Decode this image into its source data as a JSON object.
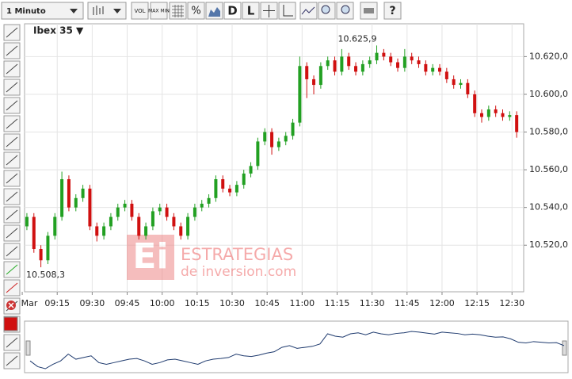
{
  "toolbar": {
    "period": "1 Minuto",
    "buttons": [
      "VOL",
      "MAX MIN",
      "%",
      "D",
      "L",
      "?"
    ]
  },
  "watermark": {
    "logo": "Ei",
    "line1": "ESTRATEGIAS",
    "line2": "de inversion.com"
  },
  "chart_data": {
    "type": "candlestick",
    "title": "Ibex 35 ▼",
    "x": [
      542,
      545,
      548,
      551,
      554,
      557,
      560,
      563,
      566,
      569,
      572,
      575,
      578,
      581,
      584,
      587,
      590,
      593,
      596,
      599,
      602,
      605,
      608,
      611,
      614,
      617,
      620,
      623,
      626,
      629,
      632,
      635,
      638,
      641,
      644,
      647,
      650,
      653,
      656,
      659,
      662,
      665,
      668,
      671,
      674,
      677,
      680,
      683,
      686,
      689,
      692,
      695,
      698,
      701,
      704,
      707,
      710,
      713,
      716,
      719,
      722,
      725,
      728,
      731,
      734,
      737,
      740,
      743,
      746,
      749,
      752
    ],
    "open": [
      10530,
      10535,
      10518,
      10512,
      10525,
      10535,
      10555,
      10540,
      10545,
      10550,
      10530,
      10525,
      10530,
      10535,
      10540,
      10542,
      10535,
      10525,
      10530,
      10538,
      10540,
      10535,
      10530,
      10525,
      10535,
      10540,
      10542,
      10545,
      10555,
      10550,
      10548,
      10552,
      10558,
      10562,
      10575,
      10580,
      10572,
      10575,
      10578,
      10585,
      10615,
      10608,
      10605,
      10615,
      10618,
      10612,
      10620,
      10615,
      10612,
      10616,
      10618,
      10622,
      10620,
      10617,
      10614,
      10620,
      10618,
      10616,
      10612,
      10614,
      10612,
      10608,
      10605,
      10606,
      10600,
      10590,
      10588,
      10592,
      10590,
      10588,
      10589
    ],
    "high": [
      10537,
      10537,
      10520,
      10527,
      10537,
      10559,
      10557,
      10547,
      10552,
      10552,
      10532,
      10532,
      10537,
      10542,
      10544,
      10544,
      10537,
      10532,
      10540,
      10542,
      10542,
      10537,
      10532,
      10537,
      10542,
      10544,
      10547,
      10557,
      10557,
      10552,
      10554,
      10560,
      10564,
      10577,
      10582,
      10582,
      10577,
      10580,
      10587,
      10620,
      10617,
      10610,
      10617,
      10620,
      10620,
      10624,
      10622,
      10617,
      10618,
      10620,
      10625.9,
      10624,
      10622,
      10619,
      10624,
      10622,
      10620,
      10618,
      10616,
      10616,
      10614,
      10610,
      10608,
      10608,
      10602,
      10592,
      10594,
      10594,
      10592,
      10591,
      10591
    ],
    "low": [
      10528,
      10516,
      10508.3,
      10510,
      10523,
      10533,
      10538,
      10538,
      10543,
      10528,
      10522,
      10523,
      10528,
      10533,
      10538,
      10533,
      10523,
      10523,
      10528,
      10536,
      10533,
      10528,
      10523,
      10523,
      10533,
      10538,
      10540,
      10543,
      10548,
      10546,
      10546,
      10550,
      10556,
      10560,
      10573,
      10568,
      10570,
      10573,
      10576,
      10583,
      10598,
      10600,
      10603,
      10613,
      10610,
      10610,
      10613,
      10610,
      10610,
      10614,
      10616,
      10618,
      10615,
      10612,
      10612,
      10616,
      10614,
      10610,
      10610,
      10610,
      10606,
      10603,
      10603,
      10598,
      10588,
      10585,
      10586,
      10588,
      10586,
      10586,
      10577
    ],
    "close": [
      10535,
      10518,
      10512,
      10525,
      10535,
      10555,
      10540,
      10545,
      10550,
      10530,
      10525,
      10530,
      10535,
      10540,
      10542,
      10535,
      10525,
      10530,
      10538,
      10540,
      10535,
      10530,
      10525,
      10535,
      10540,
      10542,
      10545,
      10555,
      10550,
      10548,
      10552,
      10558,
      10562,
      10575,
      10580,
      10572,
      10575,
      10578,
      10585,
      10615,
      10608,
      10605,
      10615,
      10618,
      10612,
      10620,
      10615,
      10612,
      10616,
      10618,
      10622,
      10620,
      10617,
      10614,
      10620,
      10618,
      10616,
      10612,
      10614,
      10612,
      10608,
      10605,
      10606,
      10600,
      10590,
      10588,
      10592,
      10590,
      10588,
      10589,
      10580
    ],
    "up_color": "#22a022",
    "down_color": "#d01010",
    "max_label": "10.625,9",
    "min_label": "10.508,3",
    "xlim": [
      541,
      755
    ],
    "xticks": [
      {
        "value": 540,
        "label": "Mar"
      },
      {
        "value": 555,
        "label": "09:15"
      },
      {
        "value": 570,
        "label": "09:30"
      },
      {
        "value": 585,
        "label": "09:45"
      },
      {
        "value": 600,
        "label": "10:00"
      },
      {
        "value": 615,
        "label": "10:15"
      },
      {
        "value": 630,
        "label": "10:30"
      },
      {
        "value": 645,
        "label": "10:45"
      },
      {
        "value": 660,
        "label": "11:00"
      },
      {
        "value": 675,
        "label": "11:15"
      },
      {
        "value": 690,
        "label": "11:30"
      },
      {
        "value": 705,
        "label": "11:45"
      },
      {
        "value": 720,
        "label": "12:00"
      },
      {
        "value": 735,
        "label": "12:15"
      },
      {
        "value": 750,
        "label": "12:30"
      }
    ],
    "ylim": [
      10495.3,
      10637.4
    ],
    "yticks": [
      {
        "value": 10520,
        "label": "10.520,0"
      },
      {
        "value": 10540,
        "label": "10.540,0"
      },
      {
        "value": 10560,
        "label": "10.560,0"
      },
      {
        "value": 10580,
        "label": "10.580,0"
      },
      {
        "value": 10600,
        "label": "10.600,0"
      },
      {
        "value": 10620,
        "label": "10.620,0"
      }
    ],
    "grid": true
  }
}
